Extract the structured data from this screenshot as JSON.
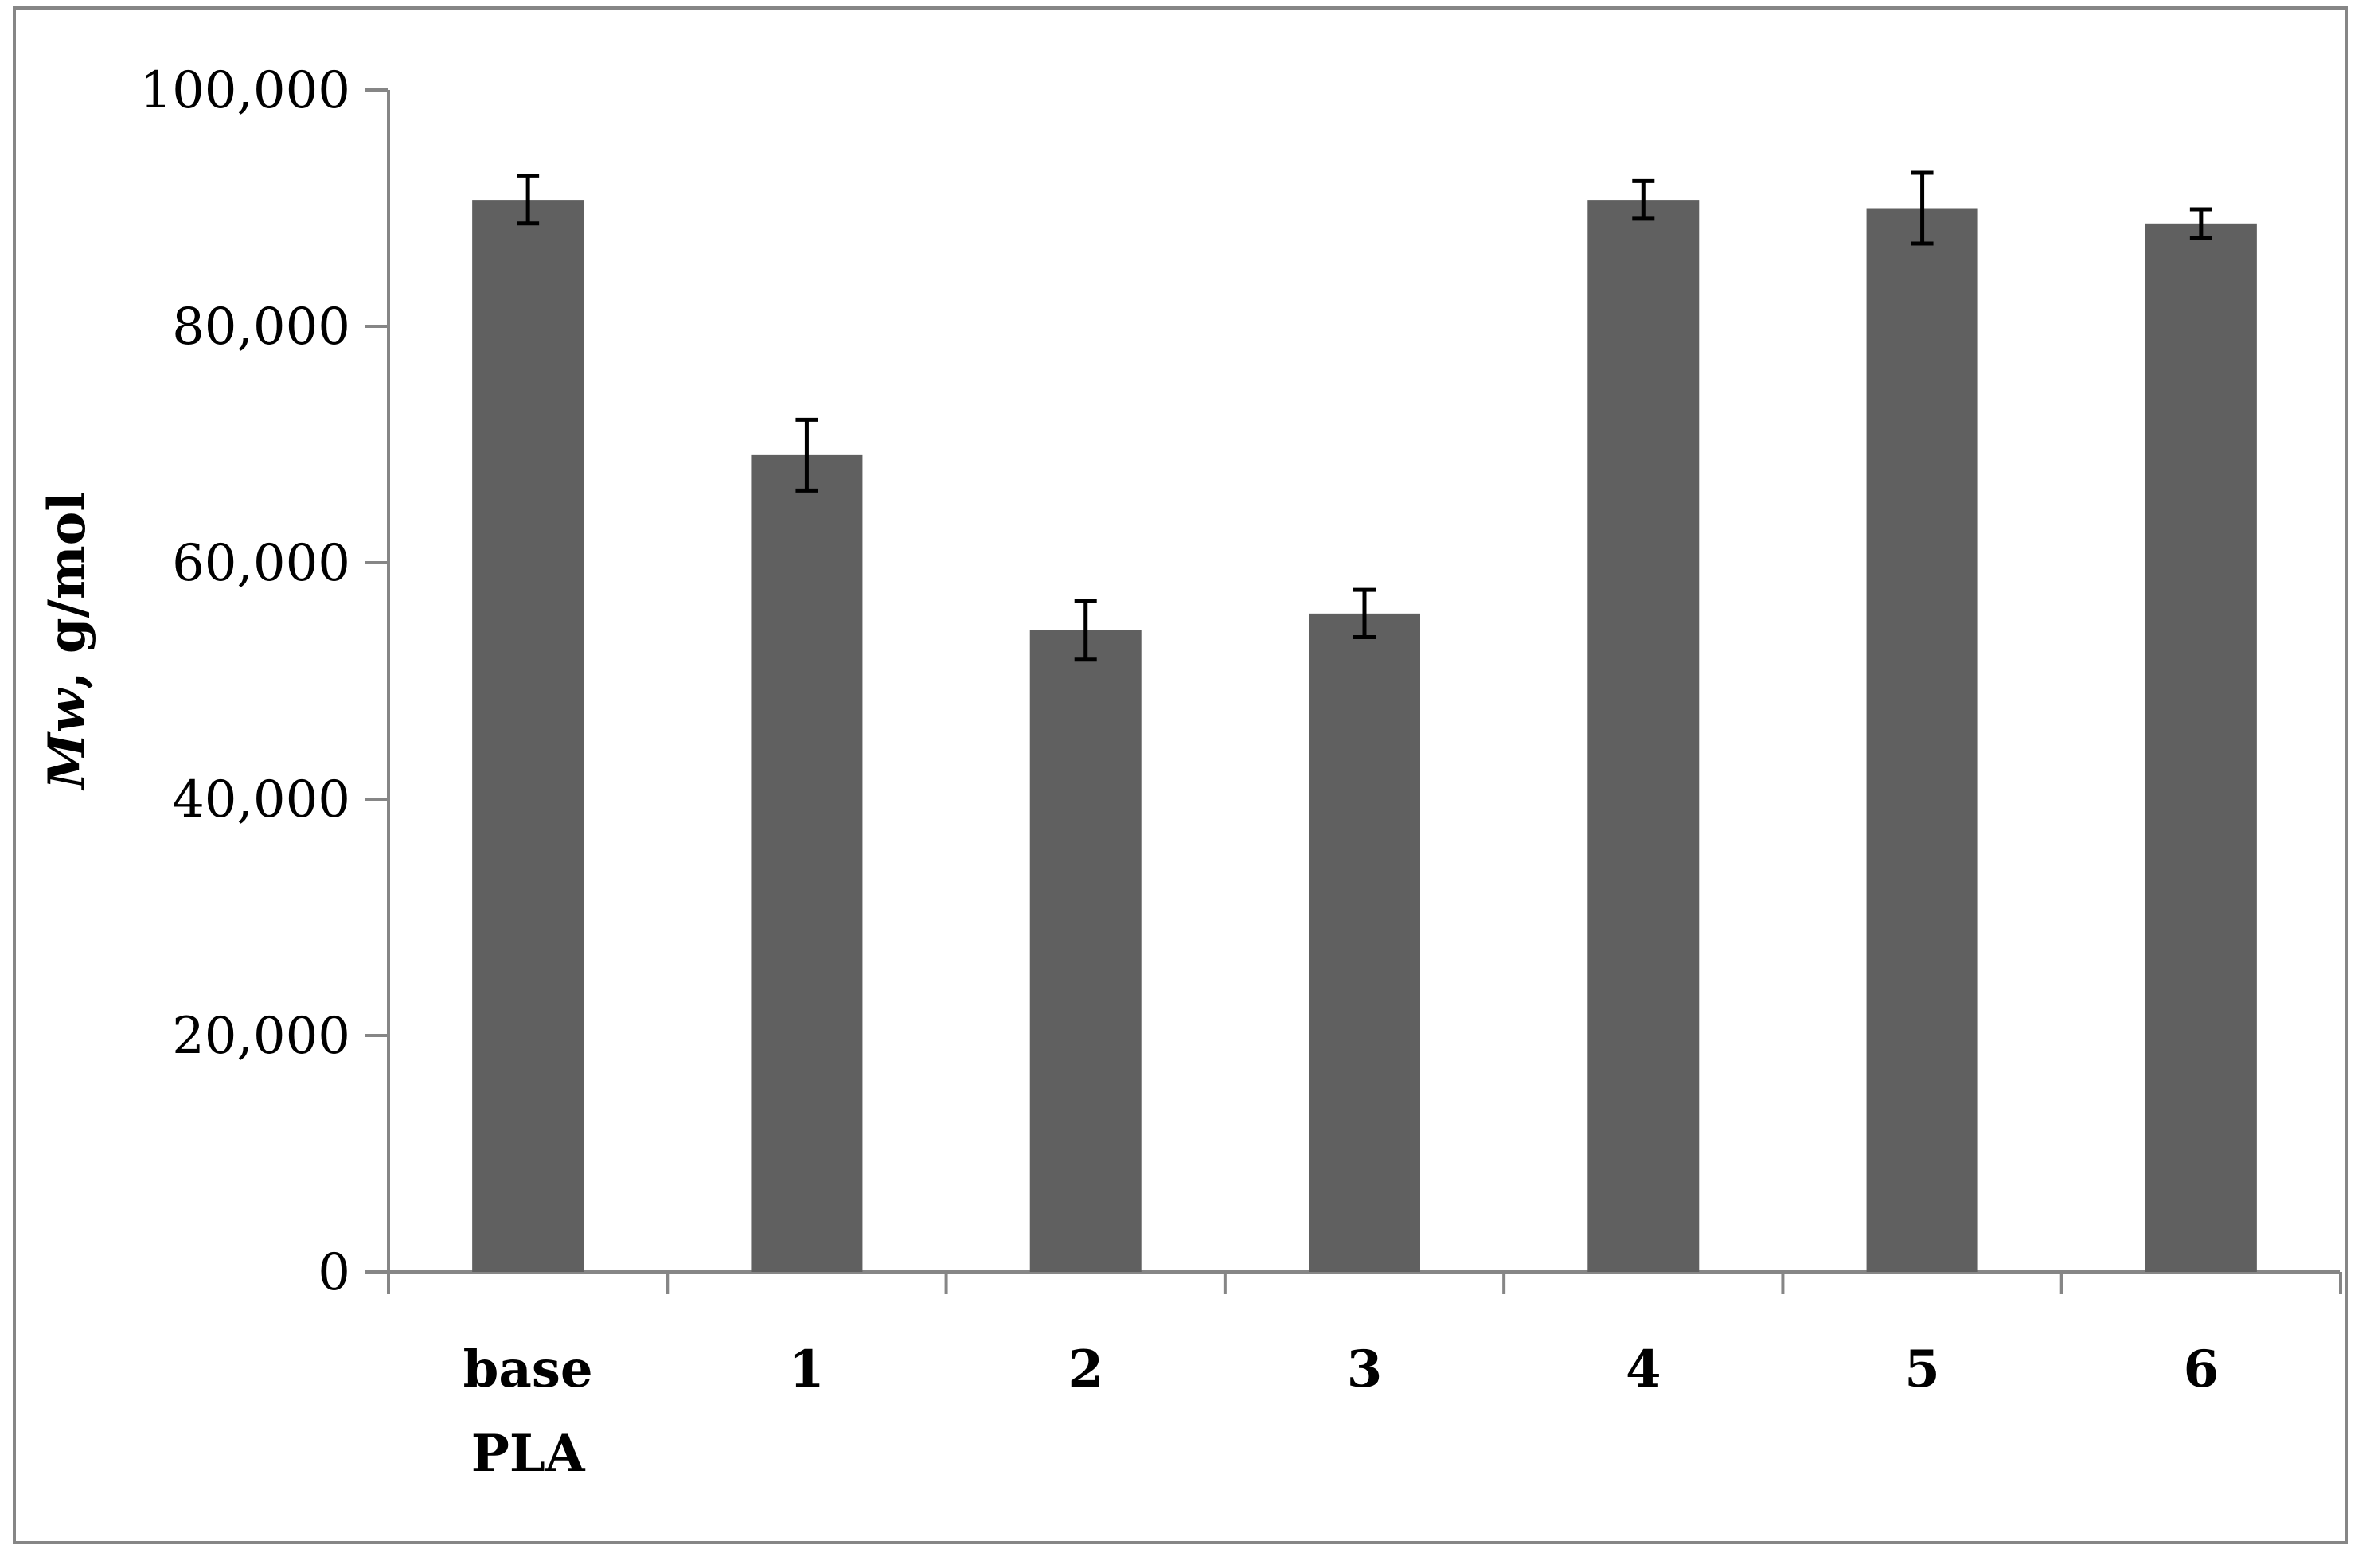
{
  "chart_data": {
    "type": "bar",
    "categories": [
      [
        "base",
        "PLA"
      ],
      [
        "1"
      ],
      [
        "2"
      ],
      [
        "3"
      ],
      [
        "4"
      ],
      [
        "5"
      ],
      [
        "6"
      ]
    ],
    "values": [
      90700,
      69100,
      54300,
      55700,
      90700,
      90000,
      88700
    ],
    "error_bars": [
      2000,
      3000,
      2500,
      2000,
      1600,
      3000,
      1200
    ],
    "ylabel_italic": "Mw",
    "ylabel_rest": ", g/mol",
    "xlabel": "",
    "title": "",
    "ylim": [
      0,
      100000
    ],
    "yticks": [
      0,
      20000,
      40000,
      60000,
      80000,
      100000
    ],
    "ytick_labels": [
      "0",
      "20,000",
      "40,000",
      "60,000",
      "80,000",
      "100,000"
    ],
    "grid": false,
    "legend": "none",
    "colors": {
      "bar": "#606060",
      "axis": "#868686",
      "error_bar": "#000000",
      "frame": "#868686"
    }
  }
}
